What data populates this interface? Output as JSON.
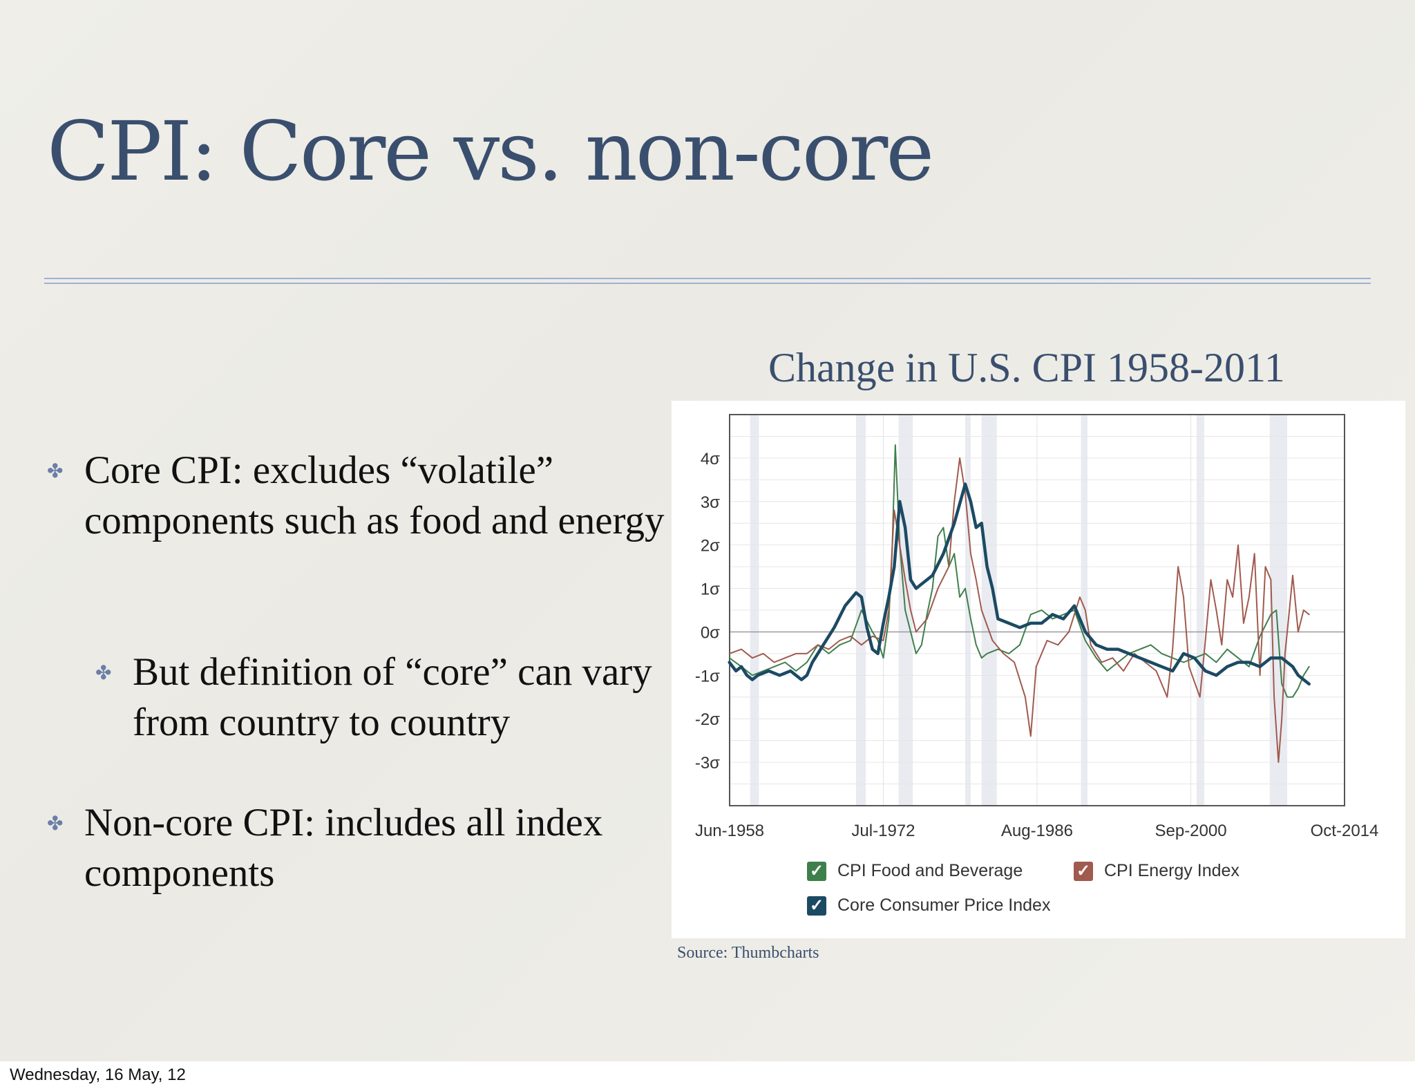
{
  "slide": {
    "title": "CPI: Core vs. non-core",
    "bullets": [
      {
        "text": "Core CPI: excludes “volatile” components such as food and energy"
      },
      {
        "text": "But definition of “core” can vary from country to country"
      },
      {
        "text": "Non-core CPI: includes all index components"
      }
    ],
    "chart_heading": "Change in U.S. CPI 1958-2011",
    "source": "Source: Thumbcharts",
    "footer_date": "Wednesday, 16 May, 12",
    "colors": {
      "title": "#3a4f6e",
      "rule": "#9fb0d4",
      "bullet_mark": "#6a7fa8"
    }
  },
  "chart_data": {
    "type": "line",
    "title": "",
    "xlabel": "",
    "ylabel": "",
    "x_ticks": [
      "Jun-1958",
      "Jul-1972",
      "Aug-1986",
      "Sep-2000",
      "Oct-2014"
    ],
    "x_tick_years": [
      1958.42,
      1972.5,
      1986.58,
      2000.67,
      2014.75
    ],
    "xlim": [
      1958.42,
      2014.75
    ],
    "y_ticks": [
      "4σ",
      "3σ",
      "2σ",
      "1σ",
      "0σ",
      "-1σ",
      "-2σ",
      "-3σ"
    ],
    "y_tick_values": [
      4,
      3,
      2,
      1,
      0,
      -1,
      -2,
      -3
    ],
    "ylim": [
      -4,
      5
    ],
    "grid": true,
    "legend_position": "bottom",
    "recession_bands": [
      [
        1960.3,
        1961.1
      ],
      [
        1970.0,
        1970.9
      ],
      [
        1973.9,
        1975.2
      ],
      [
        1980.0,
        1980.5
      ],
      [
        1981.5,
        1982.9
      ],
      [
        1990.6,
        1991.2
      ],
      [
        2001.2,
        2001.9
      ],
      [
        2007.9,
        2009.5
      ]
    ],
    "series": [
      {
        "name": "CPI Food and Beverage",
        "color": "#3f7f4c",
        "x": [
          1958.4,
          1959.5,
          1960.5,
          1961.5,
          1962.5,
          1963.5,
          1964.5,
          1965.5,
          1966.5,
          1967.5,
          1968.5,
          1969.5,
          1970.5,
          1971.5,
          1972.0,
          1972.5,
          1973.0,
          1973.3,
          1973.6,
          1974.0,
          1974.5,
          1975.0,
          1975.5,
          1976.0,
          1976.5,
          1977.0,
          1977.5,
          1978.0,
          1978.5,
          1979.0,
          1979.5,
          1980.0,
          1980.5,
          1981.0,
          1981.5,
          1982.0,
          1983.0,
          1984.0,
          1985.0,
          1986.0,
          1987.0,
          1988.0,
          1989.0,
          1990.0,
          1991.0,
          1992.0,
          1993.0,
          1994.0,
          1995.0,
          1996.0,
          1997.0,
          1998.0,
          1999.0,
          2000.0,
          2001.0,
          2002.0,
          2003.0,
          2004.0,
          2005.0,
          2006.0,
          2007.0,
          2008.0,
          2008.5,
          2009.0,
          2009.5,
          2010.0,
          2010.5,
          2011.0,
          2011.5
        ],
        "y": [
          -0.6,
          -0.8,
          -1.0,
          -0.9,
          -0.8,
          -0.7,
          -0.9,
          -0.7,
          -0.3,
          -0.5,
          -0.3,
          -0.2,
          0.5,
          0.0,
          -0.2,
          -0.6,
          0.3,
          1.8,
          4.3,
          2.0,
          0.5,
          0.0,
          -0.5,
          -0.3,
          0.4,
          1.0,
          2.2,
          2.4,
          1.5,
          1.8,
          0.8,
          1.0,
          0.3,
          -0.3,
          -0.6,
          -0.5,
          -0.4,
          -0.5,
          -0.3,
          0.4,
          0.5,
          0.3,
          0.4,
          0.5,
          -0.2,
          -0.6,
          -0.9,
          -0.7,
          -0.5,
          -0.4,
          -0.3,
          -0.5,
          -0.6,
          -0.7,
          -0.6,
          -0.5,
          -0.7,
          -0.4,
          -0.6,
          -0.8,
          -0.1,
          0.4,
          0.5,
          -1.2,
          -1.5,
          -1.5,
          -1.3,
          -1.0,
          -0.8
        ]
      },
      {
        "name": "CPI Energy Index",
        "color": "#a05a4e",
        "x": [
          1958.4,
          1959.5,
          1960.5,
          1961.5,
          1962.5,
          1963.5,
          1964.5,
          1965.5,
          1966.5,
          1967.5,
          1968.5,
          1969.5,
          1970.5,
          1971.5,
          1972.5,
          1973.0,
          1973.5,
          1974.0,
          1974.5,
          1975.0,
          1975.5,
          1976.5,
          1977.5,
          1978.5,
          1979.0,
          1979.5,
          1980.0,
          1980.5,
          1981.0,
          1981.5,
          1982.5,
          1983.5,
          1984.5,
          1985.5,
          1986.0,
          1986.5,
          1987.5,
          1988.5,
          1989.5,
          1990.5,
          1991.0,
          1991.5,
          1992.5,
          1993.5,
          1994.5,
          1995.5,
          1996.5,
          1997.5,
          1998.5,
          1999.0,
          1999.5,
          2000.0,
          2000.5,
          2001.5,
          2002.0,
          2002.5,
          2003.0,
          2003.5,
          2004.0,
          2004.5,
          2005.0,
          2005.5,
          2006.0,
          2006.5,
          2007.0,
          2007.5,
          2008.0,
          2008.3,
          2008.7,
          2009.0,
          2009.3,
          2009.7,
          2010.0,
          2010.5,
          2011.0,
          2011.5
        ],
        "y": [
          -0.5,
          -0.4,
          -0.6,
          -0.5,
          -0.7,
          -0.6,
          -0.5,
          -0.5,
          -0.3,
          -0.4,
          -0.2,
          -0.1,
          -0.3,
          -0.1,
          -0.2,
          0.5,
          2.8,
          2.0,
          1.2,
          0.5,
          0.0,
          0.3,
          1.0,
          1.5,
          3.0,
          4.0,
          3.2,
          1.8,
          1.2,
          0.5,
          -0.2,
          -0.5,
          -0.7,
          -1.5,
          -2.4,
          -0.8,
          -0.2,
          -0.3,
          0.0,
          0.8,
          0.5,
          -0.3,
          -0.7,
          -0.6,
          -0.9,
          -0.5,
          -0.7,
          -0.9,
          -1.5,
          -0.4,
          1.5,
          0.8,
          -0.8,
          -1.5,
          -0.2,
          1.2,
          0.5,
          -0.3,
          1.2,
          0.8,
          2.0,
          0.2,
          0.8,
          1.8,
          -1.0,
          1.5,
          1.2,
          -1.5,
          -3.0,
          -2.0,
          -0.5,
          0.5,
          1.3,
          0.0,
          0.5,
          0.4
        ]
      },
      {
        "name": "Core Consumer Price Index",
        "color": "#1c4a63",
        "x": [
          1958.4,
          1959.0,
          1959.5,
          1960.0,
          1960.5,
          1961.0,
          1962.0,
          1963.0,
          1964.0,
          1965.0,
          1965.5,
          1966.0,
          1967.0,
          1968.0,
          1969.0,
          1970.0,
          1970.5,
          1971.0,
          1971.5,
          1972.0,
          1972.5,
          1973.0,
          1973.5,
          1974.0,
          1974.5,
          1975.0,
          1975.5,
          1976.0,
          1977.0,
          1978.0,
          1979.0,
          1980.0,
          1980.5,
          1981.0,
          1981.5,
          1982.0,
          1982.5,
          1983.0,
          1984.0,
          1985.0,
          1986.0,
          1987.0,
          1988.0,
          1989.0,
          1990.0,
          1991.0,
          1992.0,
          1993.0,
          1994.0,
          1995.0,
          1996.0,
          1997.0,
          1998.0,
          1999.0,
          2000.0,
          2001.0,
          2002.0,
          2003.0,
          2004.0,
          2005.0,
          2006.0,
          2007.0,
          2008.0,
          2009.0,
          2010.0,
          2010.5,
          2011.0,
          2011.5
        ],
        "y": [
          -0.7,
          -0.9,
          -0.8,
          -1.0,
          -1.1,
          -1.0,
          -0.9,
          -1.0,
          -0.9,
          -1.1,
          -1.0,
          -0.7,
          -0.3,
          0.1,
          0.6,
          0.9,
          0.8,
          0.1,
          -0.4,
          -0.5,
          0.2,
          0.8,
          1.5,
          3.0,
          2.4,
          1.2,
          1.0,
          1.1,
          1.3,
          1.8,
          2.5,
          3.4,
          3.0,
          2.4,
          2.5,
          1.5,
          1.0,
          0.3,
          0.2,
          0.1,
          0.2,
          0.2,
          0.4,
          0.3,
          0.6,
          0.0,
          -0.3,
          -0.4,
          -0.4,
          -0.5,
          -0.6,
          -0.7,
          -0.8,
          -0.9,
          -0.5,
          -0.6,
          -0.9,
          -1.0,
          -0.8,
          -0.7,
          -0.7,
          -0.8,
          -0.6,
          -0.6,
          -0.8,
          -1.0,
          -1.1,
          -1.2
        ]
      }
    ]
  }
}
